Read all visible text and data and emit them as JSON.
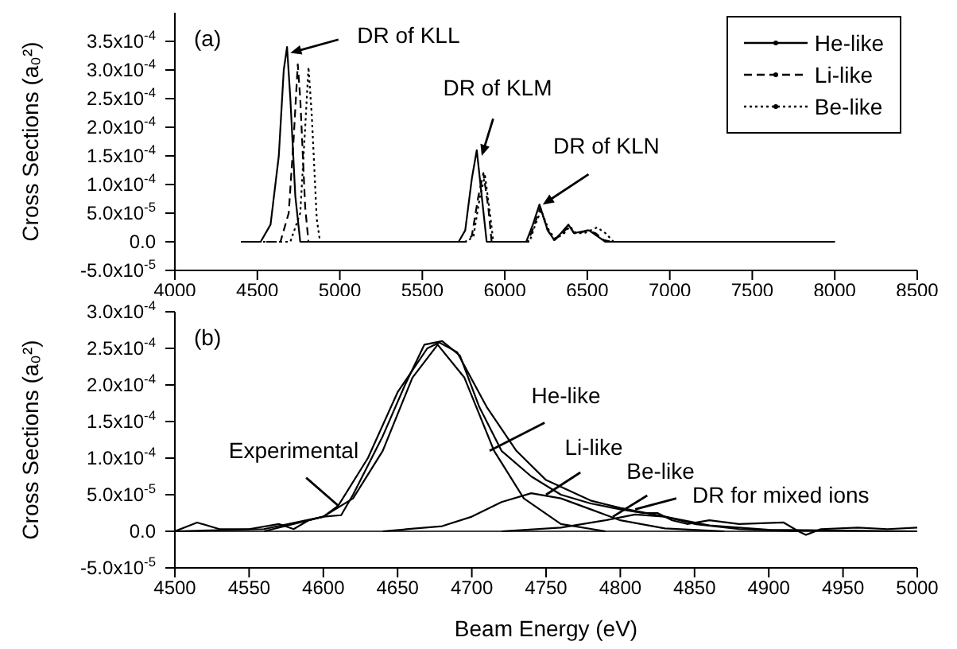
{
  "chart_data": [
    {
      "type": "line",
      "ylabel": "Cross Sections (a₀²)",
      "legend": "top right",
      "xlim": [
        4000,
        8500
      ],
      "xticks": [
        4000,
        4500,
        5000,
        5500,
        6000,
        6500,
        7000,
        7500,
        8000,
        8500
      ],
      "ylim": [
        -5e-05,
        0.0004
      ],
      "yticks": [
        {
          "value": -5e-05,
          "label": "-5.0x10$^{-5}$"
        },
        {
          "value": 0,
          "label": "0.0"
        },
        {
          "value": 5e-05,
          "label": "5.0x10$^{-5}$"
        },
        {
          "value": 0.0001,
          "label": "1.0x10$^{-4}$"
        },
        {
          "value": 0.00015,
          "label": "1.5x10$^{-4}$"
        },
        {
          "value": 0.0002,
          "label": "2.0x10$^{-4}$"
        },
        {
          "value": 0.00025,
          "label": "2.5x10$^{-4}$"
        },
        {
          "value": 0.0003,
          "label": "3.0x10$^{-4}$"
        },
        {
          "value": 0.00035,
          "label": "3.5x10$^{-4}$"
        }
      ],
      "annotations": [
        "(a)",
        {
          "text": "DR of KLL",
          "x": 4700,
          "y": 0.00033
        },
        {
          "text": "DR of KLM",
          "x": 5860,
          "y": 0.00015
        },
        {
          "text": "DR of KLN",
          "x": 6230,
          "y": 6.5e-05
        }
      ],
      "series": [
        {
          "name": "He-like",
          "color": "#000000",
          "line_style": "solid",
          "x": [
            4400,
            4520,
            4580,
            4630,
            4660,
            4680,
            4700,
            4730,
            4760,
            5720,
            5760,
            5800,
            5830,
            5860,
            5890,
            6130,
            6170,
            6210,
            6260,
            6300,
            6340,
            6385,
            6420,
            6470,
            6510,
            6560,
            6610,
            8000
          ],
          "values": [
            0,
            0,
            3e-05,
            0.00015,
            0.0003,
            0.00034,
            0.00025,
            8e-05,
            0,
            0,
            2e-05,
            0.00011,
            0.00016,
            8e-05,
            0,
            0,
            3e-05,
            6.5e-05,
            2e-05,
            3e-06,
            1.5e-05,
            3e-05,
            1.5e-05,
            1.8e-05,
            2e-05,
            1e-05,
            0,
            0
          ]
        },
        {
          "name": "Li-like",
          "color": "#000000",
          "line_style": "dashed",
          "x": [
            4400,
            4640,
            4690,
            4720,
            4745,
            4760,
            4790,
            4810,
            5760,
            5800,
            5840,
            5870,
            5900,
            5920,
            6140,
            6180,
            6215,
            6260,
            6300,
            6350,
            6390,
            6420,
            6450,
            6500,
            6550,
            6600,
            6650,
            8000
          ],
          "values": [
            0,
            0,
            5e-05,
            0.00018,
            0.00031,
            0.00025,
            6e-05,
            0,
            0,
            1e-05,
            8e-05,
            0.00012,
            6e-05,
            0,
            0,
            3e-05,
            6e-05,
            2e-05,
            3e-06,
            1.5e-05,
            2.8e-05,
            1.5e-05,
            1.5e-05,
            2e-05,
            1.5e-05,
            3e-06,
            0,
            0
          ]
        },
        {
          "name": "Be-like",
          "color": "#000000",
          "line_style": "dotted",
          "x": [
            4400,
            4700,
            4760,
            4790,
            4810,
            4830,
            4860,
            4880,
            5770,
            5810,
            5850,
            5880,
            5910,
            5930,
            6150,
            6185,
            6220,
            6270,
            6310,
            6360,
            6395,
            6430,
            6480,
            6560,
            6610,
            6660,
            8000
          ],
          "values": [
            0,
            0,
            5e-05,
            0.0002,
            0.000305,
            0.00022,
            4e-05,
            0,
            0,
            1e-05,
            8e-05,
            0.000115,
            5e-05,
            0,
            0,
            3e-05,
            5.5e-05,
            1.8e-05,
            5e-06,
            1.5e-05,
            2.7e-05,
            1.5e-05,
            1.5e-05,
            2.5e-05,
            1.5e-05,
            0,
            0
          ]
        }
      ]
    },
    {
      "type": "line",
      "xlabel": "Beam Energy (eV)",
      "ylabel": "Cross Sections (a₀²)",
      "xlim": [
        4500,
        5000
      ],
      "xticks": [
        4500,
        4550,
        4600,
        4650,
        4700,
        4750,
        4800,
        4850,
        4900,
        4950,
        5000
      ],
      "ylim": [
        -5e-05,
        0.0003
      ],
      "yticks": [
        {
          "value": -5e-05,
          "label": "-5.0x10$^{-5}$"
        },
        {
          "value": 0,
          "label": "0.0"
        },
        {
          "value": 5e-05,
          "label": "5.0x10$^{-5}$"
        },
        {
          "value": 0.0001,
          "label": "1.0x10$^{-4}$"
        },
        {
          "value": 0.00015,
          "label": "1.5x10$^{-4}$"
        },
        {
          "value": 0.0002,
          "label": "2.0x10$^{-4}$"
        },
        {
          "value": 0.00025,
          "label": "2.5x10$^{-4}$"
        },
        {
          "value": 0.0003,
          "label": "3.0x10$^{-4}$"
        }
      ],
      "ref_lines": [
        {
          "axis": "y",
          "value": 0,
          "color": "#000000"
        }
      ],
      "annotations": [
        "(b)",
        {
          "text": "Experimental",
          "x": 4610,
          "y": 3.5e-05
        },
        {
          "text": "He-like",
          "x": 4712,
          "y": 0.00011
        },
        {
          "text": "Li-like",
          "x": 4750,
          "y": 5e-05
        },
        {
          "text": "Be-like",
          "x": 4795,
          "y": 2e-05
        },
        {
          "text": "DR for mixed ions",
          "x": 4810,
          "y": 3e-05
        }
      ],
      "series": [
        {
          "color": "#000000",
          "x": [
            4500,
            4515,
            4530,
            4550,
            4570,
            4580,
            4590,
            4600,
            4612,
            4620,
            4640,
            4655,
            4668,
            4680,
            4692,
            4705,
            4720,
            4740,
            4760,
            4780,
            4800,
            4815,
            4825,
            4835,
            4845,
            4860,
            4880,
            4910,
            4920,
            4925,
            4935,
            4960,
            4980,
            5000
          ],
          "values": [
            0,
            1.2e-05,
            3e-06,
            3e-06,
            1e-05,
            3e-06,
            1.5e-05,
            2e-05,
            2.2e-05,
            5e-05,
            0.00013,
            0.0002,
            0.000255,
            0.00026,
            0.00024,
            0.00017,
            0.00011,
            7.5e-05,
            5e-05,
            3.8e-05,
            3e-05,
            2.5e-05,
            2.5e-05,
            1.5e-05,
            1e-05,
            1.5e-05,
            1e-05,
            1.2e-05,
            0,
            -5e-06,
            3e-06,
            5e-06,
            3e-06,
            5e-06
          ]
        },
        {
          "color": "#000000",
          "x": [
            4500,
            4560,
            4600,
            4610,
            4630,
            4650,
            4670,
            4678,
            4690,
            4710,
            4730,
            4750,
            4780,
            4800,
            4830,
            4860,
            4900,
            5000
          ],
          "values": [
            0,
            3e-06,
            2e-05,
            3.5e-05,
            0.0001,
            0.00019,
            0.00025,
            0.000258,
            0.000245,
            0.00017,
            0.00011,
            7e-05,
            4.2e-05,
            3.2e-05,
            2e-05,
            8e-06,
            2e-06,
            0
          ]
        },
        {
          "color": "#000000",
          "x": [
            4560,
            4600,
            4620,
            4640,
            4660,
            4677,
            4695,
            4715,
            4735,
            4760,
            4790
          ],
          "values": [
            0,
            2e-05,
            4.5e-05,
            0.00011,
            0.00021,
            0.000255,
            0.00021,
            0.00011,
            4.5e-05,
            1e-05,
            0
          ]
        },
        {
          "color": "#000000",
          "x": [
            4640,
            4680,
            4700,
            4720,
            4740,
            4760,
            4780,
            4800,
            4830,
            4870
          ],
          "values": [
            0,
            7e-06,
            2e-05,
            4e-05,
            5.2e-05,
            4.5e-05,
            3e-05,
            1.5e-05,
            4e-06,
            0
          ]
        },
        {
          "color": "#000000",
          "x": [
            4720,
            4760,
            4790,
            4810,
            4830,
            4850,
            4880,
            4920
          ],
          "values": [
            0,
            5e-06,
            1.5e-05,
            2.3e-05,
            2e-05,
            1e-05,
            3e-06,
            0
          ]
        }
      ]
    }
  ]
}
